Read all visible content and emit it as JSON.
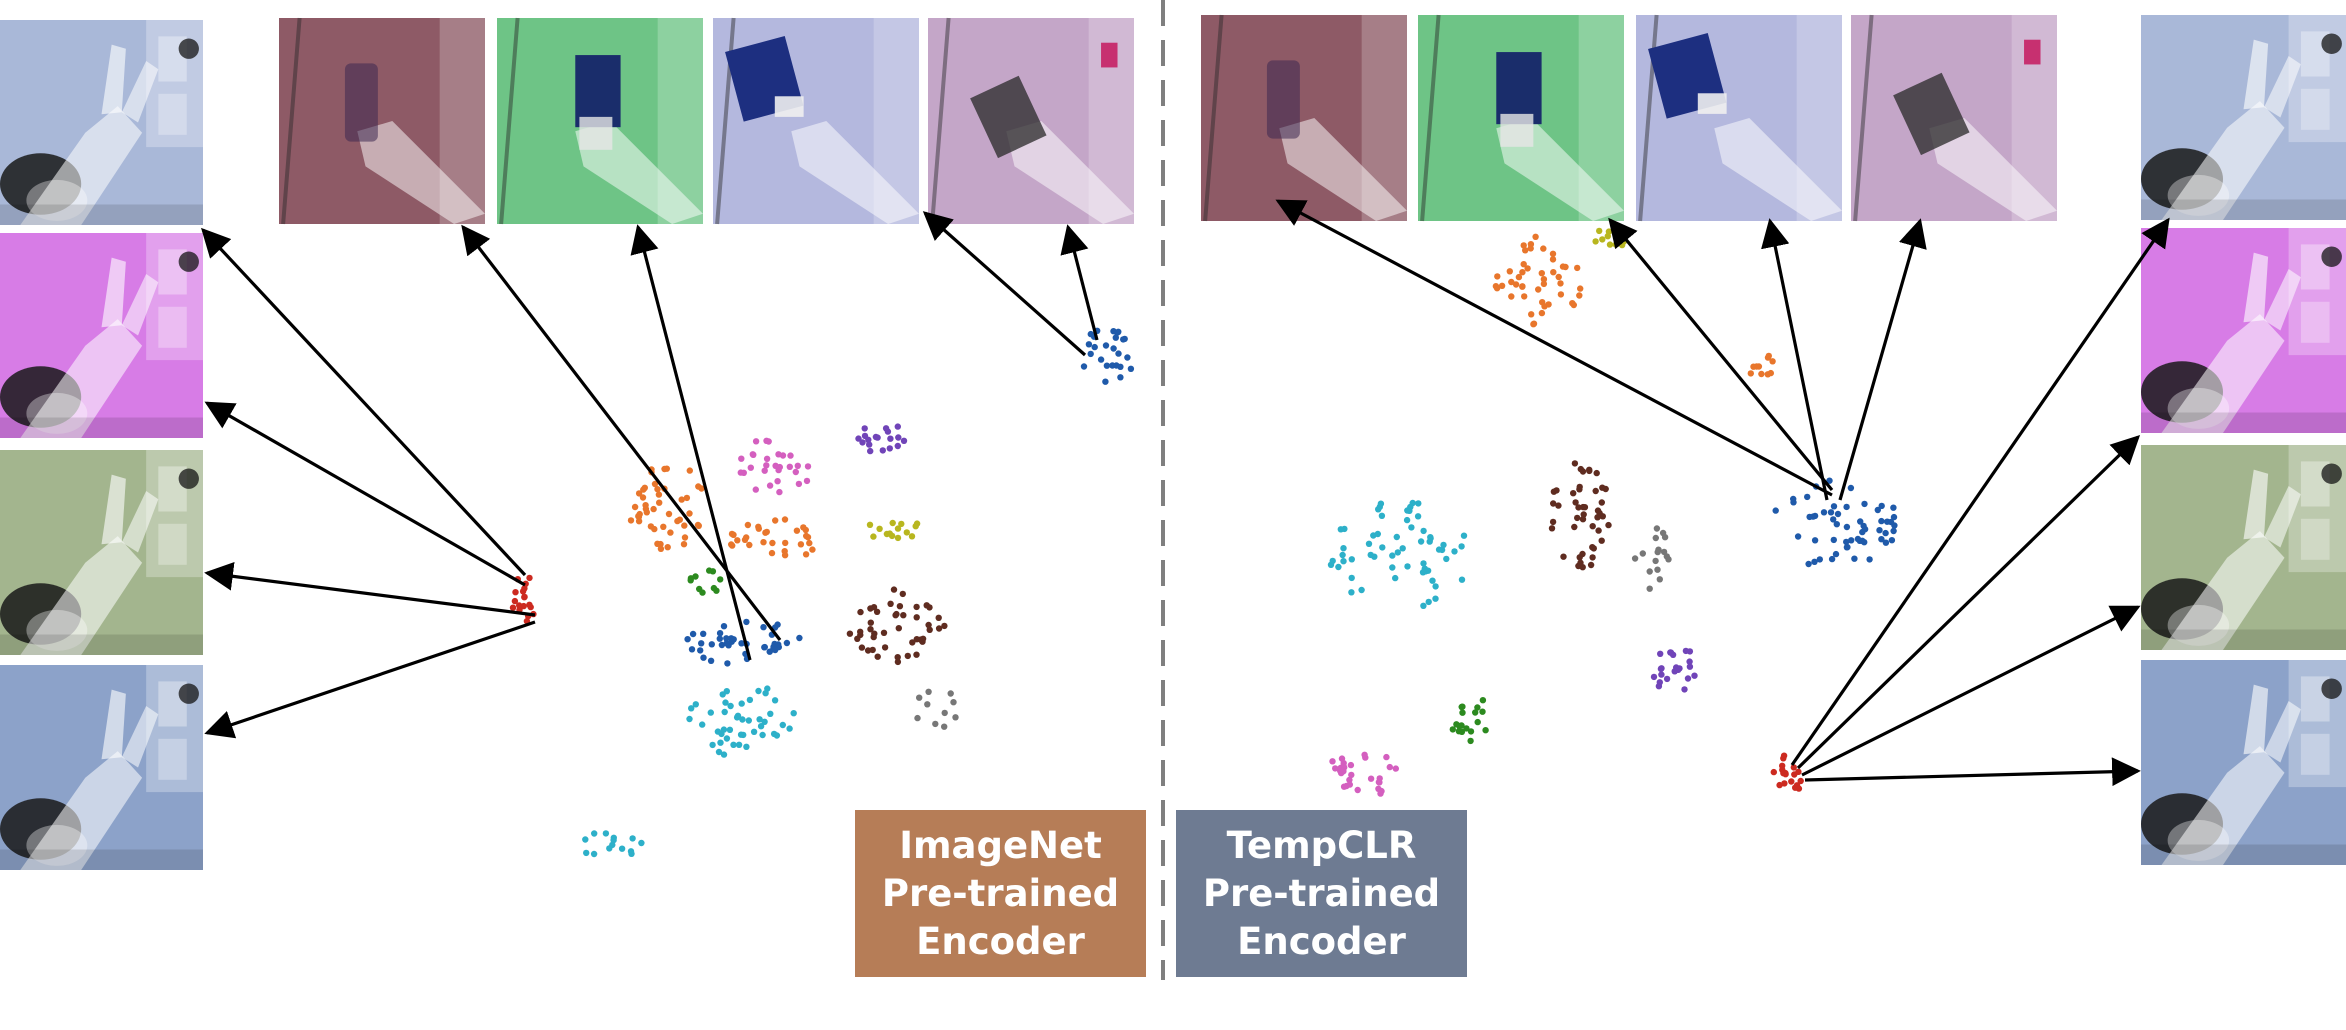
{
  "panels": {
    "left": {
      "label_lines": [
        "ImageNet",
        "Pre-trained",
        "Encoder"
      ],
      "label_color": "#b67d57"
    },
    "right": {
      "label_lines": [
        "TempCLR",
        "Pre-trained",
        "Encoder"
      ],
      "label_color": "#6e7b92"
    }
  },
  "colors": {
    "divider": "#7f7f7f",
    "arrow": "#000000",
    "clusters": {
      "orange": "#e8762c",
      "pink": "#d45fbf",
      "purple": "#7044b8",
      "olive": "#b8b61f",
      "green": "#2c8a1f",
      "blue": "#1f5aaa",
      "brown": "#5f2c20",
      "cyan": "#2db0c9",
      "gray": "#777777",
      "red": "#cc2a20"
    }
  }
}
